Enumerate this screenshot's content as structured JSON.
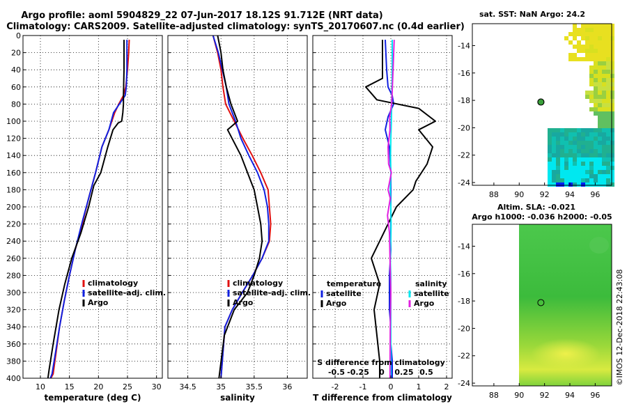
{
  "header": {
    "line1": "Argo profile: aoml 5904829_22 07-Jun-2017 18.12S 91.712E (NRT data)",
    "line2": "Climatology: CARS2009. Satellite-adjusted climatology: synTS_20170607.nc (0.4d earlier)"
  },
  "colors": {
    "climatology": "#e01010",
    "satellite": "#1020e0",
    "argo": "#000000",
    "sat_salinity": "#00e8f0",
    "argo_salinity": "#e020e0"
  },
  "chart_data": [
    {
      "id": "temperature",
      "type": "line",
      "xlabel": "temperature (deg C)",
      "ylabel": "",
      "xlim": [
        7,
        31
      ],
      "xticks": [
        10,
        15,
        20,
        25,
        30
      ],
      "ylim": [
        400,
        0
      ],
      "yticks": [
        0,
        20,
        40,
        60,
        80,
        100,
        120,
        140,
        160,
        180,
        200,
        220,
        240,
        260,
        280,
        300,
        320,
        340,
        360,
        380,
        400
      ],
      "grid": true,
      "legend": [
        "climatology",
        "satellite-adj. clim.",
        "Argo"
      ],
      "series": [
        {
          "name": "climatology",
          "x": [
            25.3,
            25.2,
            25.0,
            24.7,
            24.3,
            23.5,
            22.8,
            21.8,
            20.6,
            19.5,
            18.3,
            17.2,
            16.0,
            15.0,
            14.1,
            13.3,
            12.7,
            12.2,
            11.8
          ],
          "y": [
            5,
            20,
            40,
            60,
            70,
            80,
            90,
            110,
            130,
            160,
            190,
            220,
            250,
            280,
            310,
            340,
            370,
            395,
            400
          ]
        },
        {
          "name": "satellite-adj. clim.",
          "x": [
            24.9,
            24.9,
            24.9,
            24.8,
            24.6,
            23.6,
            22.6,
            21.8,
            20.6,
            19.5,
            18.3,
            17.1,
            16.0,
            15.0,
            14.1,
            13.3,
            12.6,
            12.0,
            11.7
          ],
          "y": [
            5,
            20,
            40,
            60,
            70,
            80,
            90,
            110,
            130,
            160,
            190,
            220,
            250,
            280,
            310,
            340,
            370,
            395,
            400
          ]
        },
        {
          "name": "Argo",
          "x": [
            24.4,
            24.4,
            24.3,
            24.3,
            24.2,
            24.0,
            23.4,
            22.5,
            21.6,
            20.4,
            19.2,
            18.3,
            17.0,
            15.4,
            14.2,
            13.2,
            12.2,
            11.5,
            11.3
          ],
          "y": [
            5,
            40,
            70,
            80,
            90,
            100,
            102,
            110,
            130,
            160,
            175,
            200,
            230,
            260,
            290,
            320,
            360,
            390,
            400
          ]
        }
      ]
    },
    {
      "id": "salinity",
      "type": "line",
      "xlabel": "salinity",
      "xlim": [
        34.2,
        36.3
      ],
      "xticks": [
        34.5,
        35,
        35.5,
        36
      ],
      "ylim": [
        400,
        0
      ],
      "yticks": [
        0,
        20,
        40,
        60,
        80,
        100,
        120,
        140,
        160,
        180,
        200,
        220,
        240,
        260,
        280,
        300,
        320,
        340,
        360,
        380,
        400
      ],
      "grid": true,
      "legend": [
        "climatology",
        "satellite-adj. clim.",
        "Argo"
      ],
      "series": [
        {
          "name": "climatology",
          "x": [
            34.88,
            34.95,
            35.0,
            35.03,
            35.07,
            35.2,
            35.33,
            35.47,
            35.6,
            35.71,
            35.73,
            35.75,
            35.73,
            35.62,
            35.48,
            35.32,
            35.17,
            35.06,
            35.0
          ],
          "y": [
            0,
            20,
            40,
            60,
            80,
            100,
            120,
            140,
            160,
            180,
            200,
            220,
            240,
            260,
            280,
            300,
            320,
            340,
            400
          ]
        },
        {
          "name": "satellite-adj. clim.",
          "x": [
            34.88,
            34.96,
            35.02,
            35.08,
            35.12,
            35.22,
            35.3,
            35.42,
            35.55,
            35.65,
            35.7,
            35.72,
            35.72,
            35.62,
            35.48,
            35.32,
            35.17,
            35.06,
            35.0
          ],
          "y": [
            0,
            20,
            40,
            60,
            80,
            100,
            120,
            140,
            160,
            180,
            200,
            220,
            240,
            260,
            280,
            300,
            320,
            340,
            400
          ]
        },
        {
          "name": "Argo",
          "x": [
            34.95,
            35.0,
            35.03,
            35.08,
            35.15,
            35.25,
            35.1,
            35.3,
            35.45,
            35.5,
            35.55,
            35.6,
            35.62,
            35.58,
            35.5,
            35.4,
            35.2,
            35.05,
            34.97
          ],
          "y": [
            0,
            20,
            40,
            60,
            80,
            100,
            110,
            140,
            170,
            180,
            200,
            220,
            240,
            260,
            280,
            300,
            320,
            350,
            400
          ]
        }
      ]
    },
    {
      "id": "difference",
      "type": "line",
      "xlabel": "T difference from climatology",
      "xlabel_top": "S difference from climatology",
      "xlim": [
        -2.8,
        2.2
      ],
      "xticks": [
        -2,
        -1,
        0,
        1,
        2
      ],
      "s_xticks": [
        "-0.5",
        "-0.25",
        "0",
        "0.25",
        "0.5"
      ],
      "ylim": [
        400,
        0
      ],
      "yticks": [
        0,
        20,
        40,
        60,
        80,
        100,
        120,
        140,
        160,
        180,
        200,
        220,
        240,
        260,
        280,
        300,
        320,
        340,
        360,
        380,
        400
      ],
      "grid": true,
      "legend_temperature": {
        "heading": "temperature",
        "entries": [
          "satellite",
          "Argo"
        ]
      },
      "legend_salinity": {
        "heading": "salinity",
        "entries": [
          "satellite",
          "Argo"
        ]
      },
      "series": [
        {
          "name": "T satellite",
          "x": [
            -0.2,
            -0.15,
            -0.1,
            0.05,
            0.1,
            -0.1,
            -0.2,
            -0.05,
            0.0,
            0.0,
            0.0,
            0.0,
            -0.05,
            -0.05,
            -0.05,
            0.0,
            0.0,
            0.05,
            0.05
          ],
          "y": [
            5,
            40,
            60,
            70,
            80,
            95,
            110,
            130,
            160,
            190,
            220,
            250,
            280,
            300,
            320,
            340,
            360,
            380,
            400
          ]
        },
        {
          "name": "T Argo",
          "x": [
            -0.3,
            -0.3,
            -0.9,
            -0.5,
            1.0,
            1.6,
            1.0,
            1.5,
            1.3,
            0.9,
            0.8,
            0.2,
            -0.1,
            -0.7,
            -0.4,
            -0.6,
            -0.5,
            -0.4,
            -0.4
          ],
          "y": [
            5,
            50,
            60,
            75,
            85,
            100,
            110,
            130,
            150,
            170,
            180,
            200,
            220,
            260,
            290,
            320,
            350,
            380,
            400
          ]
        },
        {
          "name": "S satellite",
          "x": [
            0.05,
            0.05,
            0.03,
            0.02,
            0.0,
            -0.01,
            0.0,
            -0.02,
            0.0,
            0.01,
            0.0,
            -0.02,
            0.0,
            0.0,
            0.0,
            0.0,
            0.0
          ],
          "y": [
            5,
            40,
            80,
            100,
            120,
            140,
            160,
            180,
            200,
            220,
            240,
            260,
            280,
            300,
            330,
            360,
            400
          ]
        },
        {
          "name": "S Argo",
          "x": [
            0.12,
            0.08,
            0.03,
            -0.04,
            -0.03,
            -0.1,
            -0.08,
            0.02,
            -0.1,
            -0.02,
            -0.12,
            -0.05,
            -0.03,
            0.0,
            -0.02,
            -0.03
          ],
          "y": [
            5,
            40,
            80,
            95,
            110,
            130,
            150,
            160,
            180,
            190,
            210,
            230,
            260,
            300,
            340,
            400
          ]
        }
      ]
    },
    {
      "id": "sst-map",
      "type": "heatmap",
      "title": "sat. SST: NaN Argo: 24.2",
      "xticks": [
        88,
        90,
        92,
        94,
        96
      ],
      "yticks": [
        -14,
        -16,
        -18,
        -20,
        -22,
        -24
      ],
      "marker": {
        "lon": 91.712,
        "lat": -18.12
      }
    },
    {
      "id": "sla-map",
      "type": "heatmap",
      "title": "Altim. SLA: -0.021",
      "subtitle": "Argo h1000: -0.036 h2000: -0.05",
      "xticks": [
        88,
        90,
        92,
        94,
        96
      ],
      "yticks": [
        -14,
        -16,
        -18,
        -20,
        -22,
        -24
      ],
      "marker": {
        "lon": 91.712,
        "lat": -18.12
      }
    }
  ],
  "footer": {
    "credit": "©IMOS 12-Dec-2018 22:43:08"
  }
}
